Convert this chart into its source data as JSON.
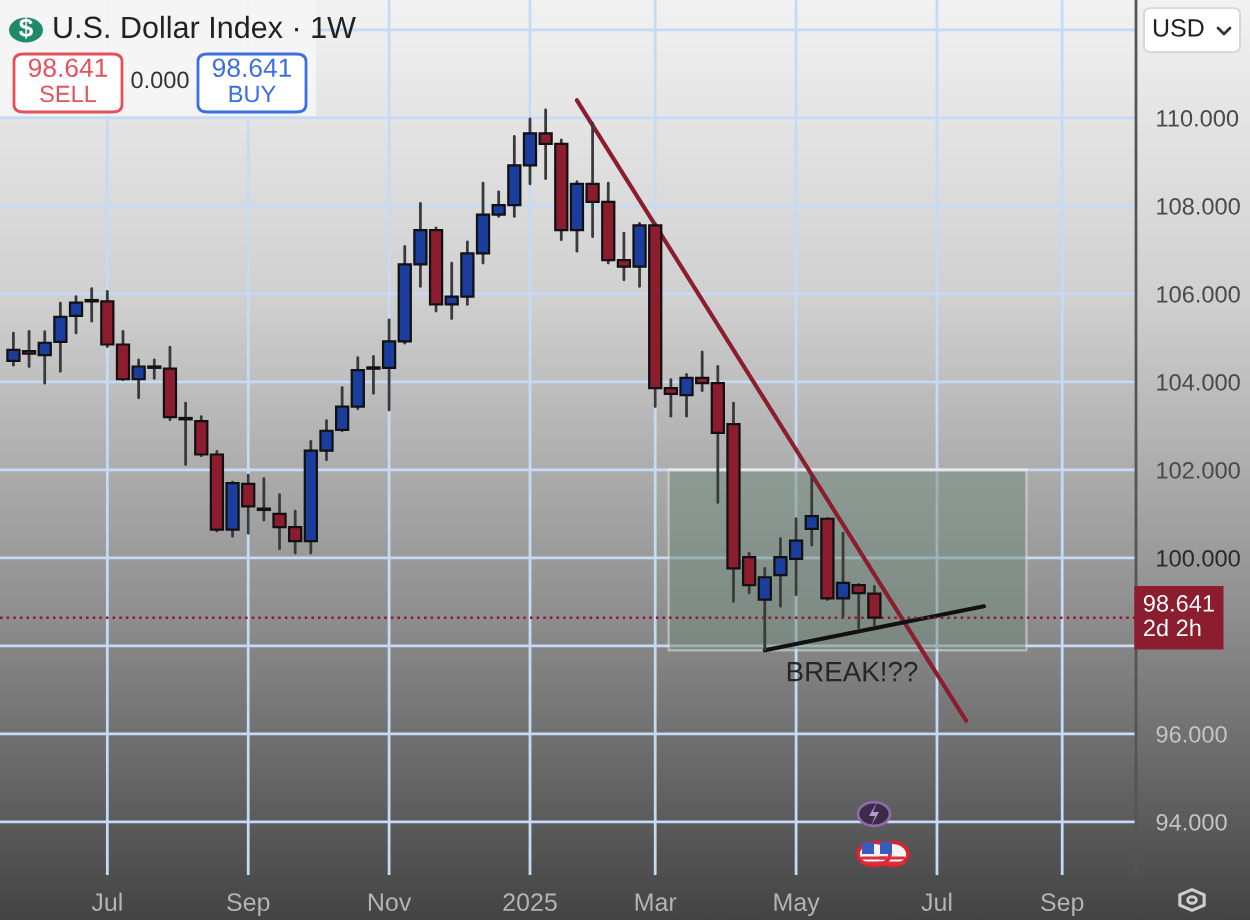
{
  "chart_data": {
    "type": "candlestick",
    "title": "U.S. Dollar Index · 1W",
    "x": [
      "2024-05-20",
      "2024-05-27",
      "2024-06-03",
      "2024-06-10",
      "2024-06-17",
      "2024-06-24",
      "2024-07-01",
      "2024-07-08",
      "2024-07-15",
      "2024-07-22",
      "2024-07-29",
      "2024-08-05",
      "2024-08-12",
      "2024-08-19",
      "2024-08-26",
      "2024-09-02",
      "2024-09-09",
      "2024-09-16",
      "2024-09-23",
      "2024-09-30",
      "2024-10-07",
      "2024-10-14",
      "2024-10-21",
      "2024-10-28",
      "2024-11-04",
      "2024-11-11",
      "2024-11-18",
      "2024-11-25",
      "2024-12-02",
      "2024-12-09",
      "2024-12-16",
      "2024-12-23",
      "2024-12-30",
      "2025-01-06",
      "2025-01-13",
      "2025-01-20",
      "2025-01-27",
      "2025-02-03",
      "2025-02-10",
      "2025-02-17",
      "2025-02-24",
      "2025-03-03",
      "2025-03-10",
      "2025-03-17",
      "2025-03-24",
      "2025-03-31",
      "2025-04-07",
      "2025-04-14",
      "2025-04-21",
      "2025-04-28",
      "2025-05-05",
      "2025-05-12",
      "2025-05-19",
      "2025-05-26",
      "2025-06-02",
      "2025-06-09"
    ],
    "ohlc": [
      [
        104.48,
        105.11,
        104.38,
        104.73
      ],
      [
        104.7,
        105.15,
        104.35,
        104.64
      ],
      [
        104.61,
        105.14,
        103.97,
        104.89
      ],
      [
        104.91,
        105.79,
        104.24,
        105.48
      ],
      [
        105.5,
        105.94,
        105.11,
        105.8
      ],
      [
        105.83,
        106.12,
        105.38,
        105.86
      ],
      [
        105.83,
        106.06,
        104.8,
        104.85
      ],
      [
        104.85,
        105.15,
        104.05,
        104.06
      ],
      [
        104.06,
        104.5,
        103.64,
        104.35
      ],
      [
        104.32,
        104.5,
        104.08,
        104.34
      ],
      [
        104.3,
        104.79,
        103.14,
        103.2
      ],
      [
        103.17,
        103.52,
        102.12,
        103.15
      ],
      [
        103.11,
        103.21,
        102.32,
        102.35
      ],
      [
        102.35,
        102.42,
        100.61,
        100.64
      ],
      [
        100.64,
        101.72,
        100.49,
        101.7
      ],
      [
        101.68,
        101.88,
        100.56,
        101.17
      ],
      [
        101.12,
        101.8,
        100.86,
        101.09
      ],
      [
        101.0,
        101.44,
        100.21,
        100.7
      ],
      [
        100.7,
        101.06,
        100.11,
        100.38
      ],
      [
        100.38,
        102.65,
        100.11,
        102.44
      ],
      [
        102.44,
        103.12,
        102.23,
        102.89
      ],
      [
        102.91,
        103.87,
        102.89,
        103.44
      ],
      [
        103.44,
        104.55,
        103.39,
        104.27
      ],
      [
        104.3,
        104.58,
        103.74,
        104.32
      ],
      [
        104.32,
        105.41,
        103.36,
        104.92
      ],
      [
        104.92,
        107.08,
        104.88,
        106.67
      ],
      [
        106.67,
        108.06,
        106.17,
        107.45
      ],
      [
        107.45,
        107.5,
        105.61,
        105.76
      ],
      [
        105.76,
        106.7,
        105.44,
        105.94
      ],
      [
        105.94,
        107.18,
        105.76,
        106.92
      ],
      [
        106.92,
        108.52,
        106.7,
        107.8
      ],
      [
        107.8,
        108.32,
        107.76,
        108.02
      ],
      [
        108.02,
        109.58,
        107.76,
        108.92
      ],
      [
        108.92,
        109.98,
        108.5,
        109.65
      ],
      [
        109.65,
        110.18,
        108.62,
        109.41
      ],
      [
        109.41,
        109.5,
        107.23,
        107.45
      ],
      [
        107.45,
        108.55,
        106.97,
        108.5
      ],
      [
        108.5,
        109.88,
        107.3,
        108.09
      ],
      [
        108.09,
        108.52,
        106.7,
        106.77
      ],
      [
        106.77,
        107.38,
        106.32,
        106.62
      ],
      [
        106.62,
        107.6,
        106.17,
        107.56
      ],
      [
        107.56,
        107.6,
        103.44,
        103.86
      ],
      [
        103.86,
        104.05,
        103.22,
        103.73
      ],
      [
        103.7,
        104.17,
        103.22,
        104.09
      ],
      [
        104.09,
        104.68,
        103.8,
        103.97
      ],
      [
        103.97,
        104.35,
        101.26,
        102.84
      ],
      [
        103.04,
        103.52,
        99.01,
        99.76
      ],
      [
        100.02,
        100.11,
        99.2,
        99.38
      ],
      [
        99.05,
        99.76,
        97.91,
        99.56
      ],
      [
        99.61,
        100.44,
        98.9,
        100.02
      ],
      [
        99.98,
        100.89,
        99.16,
        100.39
      ],
      [
        100.66,
        101.86,
        100.29,
        100.95
      ],
      [
        100.89,
        100.9,
        99.05,
        99.08
      ],
      [
        99.08,
        100.56,
        98.68,
        99.43
      ],
      [
        99.38,
        99.4,
        98.41,
        99.2
      ],
      [
        99.19,
        99.35,
        98.48,
        98.641
      ]
    ],
    "colors": [
      "#1a3d9e",
      "#8c1d2e",
      "#1a3d9e",
      "#1a3d9e",
      "#1a3d9e",
      "#1a3d9e",
      "#8c1d2e",
      "#8c1d2e",
      "#1a3d9e",
      "#1a3d9e",
      "#8c1d2e",
      "#8c1d2e",
      "#8c1d2e",
      "#8c1d2e",
      "#1a3d9e",
      "#8c1d2e",
      "#8c1d2e",
      "#8c1d2e",
      "#8c1d2e",
      "#1a3d9e",
      "#1a3d9e",
      "#1a3d9e",
      "#1a3d9e",
      "#1a3d9e",
      "#1a3d9e",
      "#1a3d9e",
      "#1a3d9e",
      "#8c1d2e",
      "#1a3d9e",
      "#1a3d9e",
      "#1a3d9e",
      "#1a3d9e",
      "#1a3d9e",
      "#1a3d9e",
      "#8c1d2e",
      "#8c1d2e",
      "#1a3d9e",
      "#8c1d2e",
      "#8c1d2e",
      "#8c1d2e",
      "#1a3d9e",
      "#8c1d2e",
      "#8c1d2e",
      "#1a3d9e",
      "#8c1d2e",
      "#8c1d2e",
      "#8c1d2e",
      "#8c1d2e",
      "#1a3d9e",
      "#1a3d9e",
      "#1a3d9e",
      "#1a3d9e",
      "#8c1d2e",
      "#1a3d9e",
      "#8c1d2e",
      "#8c1d2e"
    ],
    "series": [
      {
        "type": "line",
        "x": [
          "2025-03-09",
          "2025-08-16"
        ],
        "values": [
          102.0,
          102.0
        ],
        "lower": [
          97.9,
          97.9
        ],
        "upper": [
          102.0,
          102.0
        ],
        "color": "#e6e6e6"
      },
      {
        "type": "line",
        "x": [
          "2025-01-27",
          "2025-07-20"
        ],
        "values": [
          110.4,
          96.3
        ],
        "color": "#8c1d2e"
      },
      {
        "type": "line",
        "x": [
          "2025-04-21",
          "2025-07-28"
        ],
        "values": [
          97.9,
          98.9
        ],
        "color": "#111111"
      }
    ],
    "xlim": [
      "2024-05-14",
      "2025-10-04"
    ],
    "xticks": [
      {
        "value": "2024-07-01",
        "label": "Jul"
      },
      {
        "value": "2024-09-02",
        "label": "Sep"
      },
      {
        "value": "2024-11-04",
        "label": "Nov"
      },
      {
        "value": "2025-01-06",
        "label": "2025"
      },
      {
        "value": "2025-03-03",
        "label": "Mar"
      },
      {
        "value": "2025-05-05",
        "label": "May"
      },
      {
        "value": "2025-07-07",
        "label": "Jul"
      },
      {
        "value": "2025-09-01",
        "label": "Sep"
      }
    ],
    "ylim": [
      92.77,
      112.68
    ],
    "yticks": [
      {
        "value": 94,
        "label": "94.000"
      },
      {
        "value": 96,
        "label": "96.000"
      },
      {
        "value": 98,
        "label": null
      },
      {
        "value": 100,
        "label": "100.000"
      },
      {
        "value": 102,
        "label": "102.000"
      },
      {
        "value": 104,
        "label": "104.000"
      },
      {
        "value": 106,
        "label": "106.000"
      },
      {
        "value": 108,
        "label": "108.000"
      },
      {
        "value": 110,
        "label": "110.000"
      },
      {
        "value": 112,
        "label": null
      }
    ],
    "grid": true,
    "ref_lines": [
      {
        "axis": "y",
        "value": 98.641,
        "label": "98.641\n2d 2h",
        "color": "#8c1d2e",
        "line_style": "dotted"
      }
    ],
    "annotations": [
      "$",
      "98.641",
      "SELL",
      "0.000",
      "98.641",
      "BUY",
      "USD",
      "BREAK!??"
    ]
  }
}
